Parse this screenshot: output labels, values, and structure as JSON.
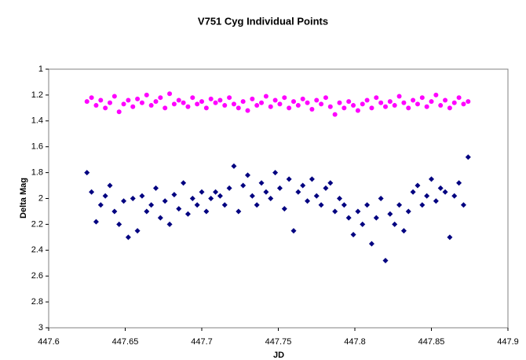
{
  "chart_data": {
    "type": "scatter",
    "title": "V751 Cyg Individual Points",
    "xlabel": "JD",
    "ylabel": "Delta Mag",
    "xlim": [
      447.6,
      447.9
    ],
    "xticks": [
      447.6,
      447.65,
      447.7,
      447.75,
      447.8,
      447.85,
      447.9
    ],
    "ylim": [
      3,
      1
    ],
    "yticks": [
      1,
      1.2,
      1.4,
      1.6,
      1.8,
      2,
      2.2,
      2.4,
      2.6,
      2.8,
      3
    ],
    "x": [
      447.625,
      447.628,
      447.631,
      447.634,
      447.637,
      447.64,
      447.643,
      447.646,
      447.649,
      447.652,
      447.655,
      447.658,
      447.661,
      447.664,
      447.667,
      447.67,
      447.673,
      447.676,
      447.679,
      447.682,
      447.685,
      447.688,
      447.691,
      447.694,
      447.697,
      447.7,
      447.703,
      447.706,
      447.709,
      447.712,
      447.715,
      447.718,
      447.721,
      447.724,
      447.727,
      447.73,
      447.733,
      447.736,
      447.739,
      447.742,
      447.745,
      447.748,
      447.751,
      447.754,
      447.757,
      447.76,
      447.763,
      447.766,
      447.769,
      447.772,
      447.775,
      447.778,
      447.781,
      447.784,
      447.787,
      447.79,
      447.793,
      447.796,
      447.799,
      447.802,
      447.805,
      447.808,
      447.811,
      447.814,
      447.817,
      447.82,
      447.823,
      447.826,
      447.829,
      447.832,
      447.835,
      447.838,
      447.841,
      447.844,
      447.847,
      447.85,
      447.853,
      447.856,
      447.859,
      447.862,
      447.865,
      447.868,
      447.871,
      447.874
    ],
    "series": [
      {
        "color": "#ff00ff",
        "marker": "circle",
        "values": [
          1.25,
          1.22,
          1.28,
          1.24,
          1.3,
          1.26,
          1.21,
          1.33,
          1.27,
          1.24,
          1.29,
          1.23,
          1.26,
          1.2,
          1.28,
          1.25,
          1.22,
          1.3,
          1.19,
          1.27,
          1.24,
          1.26,
          1.29,
          1.22,
          1.27,
          1.25,
          1.3,
          1.23,
          1.26,
          1.24,
          1.28,
          1.22,
          1.27,
          1.3,
          1.25,
          1.32,
          1.23,
          1.28,
          1.26,
          1.21,
          1.29,
          1.24,
          1.27,
          1.22,
          1.3,
          1.25,
          1.28,
          1.23,
          1.26,
          1.31,
          1.24,
          1.27,
          1.22,
          1.29,
          1.35,
          1.26,
          1.3,
          1.25,
          1.28,
          1.32,
          1.27,
          1.24,
          1.3,
          1.22,
          1.26,
          1.29,
          1.25,
          1.28,
          1.21,
          1.26,
          1.3,
          1.24,
          1.27,
          1.22,
          1.29,
          1.25,
          1.2,
          1.28,
          1.24,
          1.3,
          1.26,
          1.22,
          1.27,
          1.25
        ]
      },
      {
        "color": "#000080",
        "marker": "diamond",
        "values": [
          1.8,
          1.95,
          2.18,
          2.05,
          1.98,
          1.9,
          2.1,
          2.2,
          2.02,
          2.3,
          2.0,
          2.25,
          1.98,
          2.1,
          2.05,
          1.92,
          2.15,
          2.02,
          2.2,
          1.97,
          2.08,
          1.88,
          2.12,
          2.0,
          2.05,
          1.95,
          2.1,
          2.0,
          1.95,
          1.98,
          2.05,
          1.92,
          1.75,
          2.1,
          1.9,
          1.82,
          1.98,
          2.05,
          1.88,
          1.95,
          2.0,
          1.8,
          1.92,
          2.08,
          1.85,
          2.25,
          1.95,
          1.9,
          2.02,
          1.85,
          1.98,
          2.05,
          1.92,
          1.88,
          2.1,
          2.0,
          2.05,
          2.15,
          2.28,
          2.1,
          2.2,
          2.05,
          2.35,
          2.15,
          2.0,
          2.48,
          2.12,
          2.2,
          2.05,
          2.25,
          2.1,
          1.95,
          1.9,
          2.05,
          1.98,
          1.85,
          2.02,
          1.92,
          1.95,
          2.3,
          1.98,
          1.88,
          2.05,
          1.68
        ]
      }
    ]
  }
}
